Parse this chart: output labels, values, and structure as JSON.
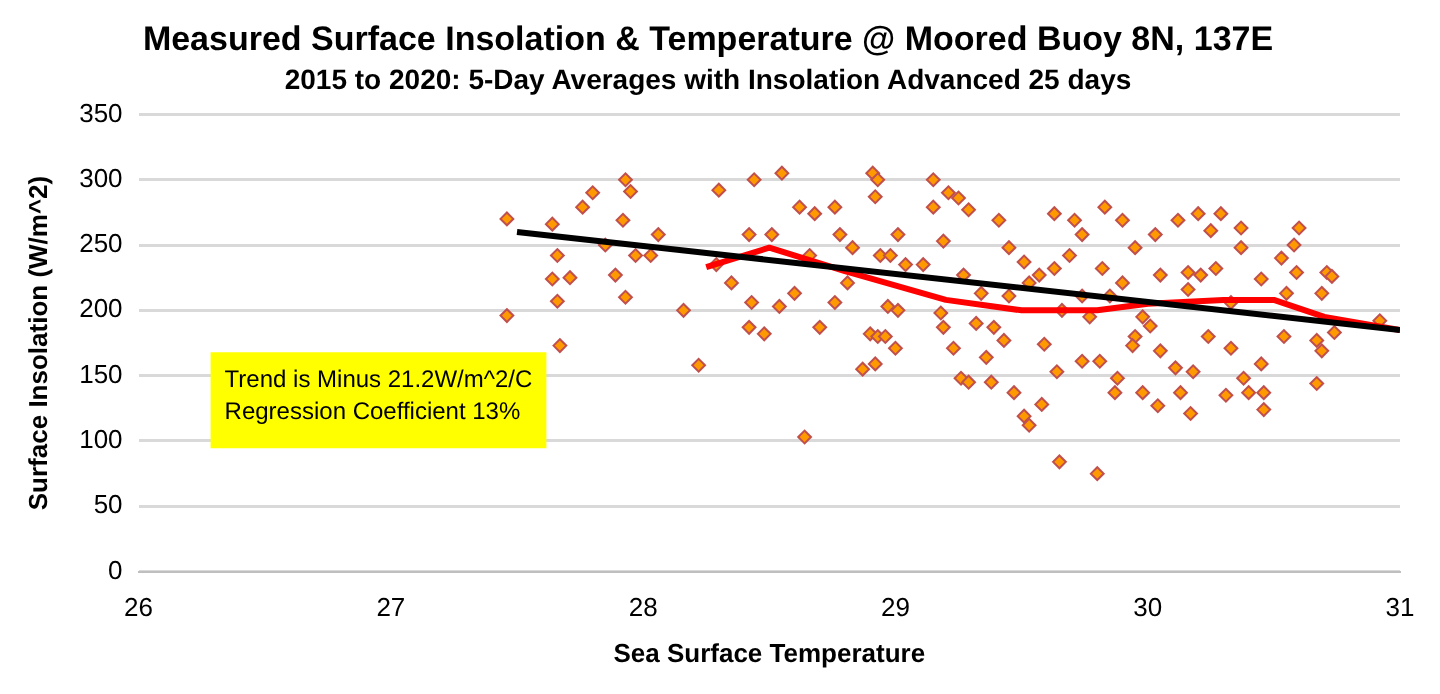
{
  "chart_data": {
    "type": "scatter",
    "title": "Measured Surface Insolation & Temperature @ Moored Buoy 8N, 137E",
    "subtitle": "2015 to 2020: 5-Day Averages with Insolation Advanced 25 days",
    "xlabel": "Sea Surface Temperature",
    "ylabel": "Surface Insolation (W/m^2)",
    "xlim": [
      26,
      31
    ],
    "xticks": [
      26,
      27,
      28,
      29,
      30,
      31
    ],
    "ylim": [
      0,
      350
    ],
    "yticks": [
      0,
      50,
      100,
      150,
      200,
      250,
      300,
      350
    ],
    "grid": "y",
    "legend": false,
    "marker": "diamond",
    "annotations": [
      "Trend is Minus 21.2W/m^2/C",
      "Regression Coefficient 13%"
    ],
    "series": [
      {
        "color": "#ff9900",
        "x": [
          27.46,
          27.46,
          27.67,
          27.66,
          27.71,
          27.93,
          27.89,
          28.16,
          28.22,
          28.06,
          28.3,
          28.44,
          28.55,
          28.64,
          28.42,
          28.48,
          28.54,
          28.43,
          28.35,
          28.42,
          28.51,
          28.62,
          28.68,
          28.76,
          28.91,
          28.93,
          28.92,
          28.7,
          28.76,
          28.81,
          28.87,
          28.92,
          28.9,
          28.93,
          28.96,
          29.0,
          29.01,
          28.97,
          28.94,
          28.98,
          29.01,
          29.04,
          28.83,
          28.78,
          28.66,
          28.6,
          28.29,
          27.97,
          28.03,
          27.85,
          27.64,
          27.76,
          27.8,
          27.93,
          27.95,
          27.92,
          27.66,
          27.64,
          29.15,
          29.21,
          29.25,
          29.29,
          29.15,
          29.19,
          29.11,
          29.27,
          29.34,
          29.19,
          29.23,
          29.26,
          29.29,
          29.36,
          29.38,
          29.47,
          29.51,
          29.53,
          29.58,
          29.65,
          29.8,
          29.63,
          29.71,
          29.83,
          29.9,
          29.74,
          29.41,
          29.45,
          29.51,
          29.57,
          29.63,
          29.69,
          29.66,
          29.77,
          29.85,
          29.95,
          30.03,
          30.12,
          30.2,
          30.29,
          30.37,
          30.37,
          30.25,
          30.16,
          30.05,
          29.98,
          29.95,
          30.01,
          30.05,
          29.88,
          29.87,
          29.98,
          30.04,
          30.13,
          30.17,
          30.18,
          30.11,
          30.24,
          30.33,
          30.38,
          30.4,
          30.46,
          30.45,
          30.46,
          30.31,
          30.54,
          30.6,
          30.58,
          30.53,
          30.59,
          30.71,
          30.73,
          30.69,
          30.67,
          30.69,
          30.67,
          30.74,
          30.92,
          30.55,
          30.45,
          30.33,
          30.27,
          30.21,
          30.16,
          29.9,
          29.82,
          29.74,
          29.53,
          29.45,
          29.39,
          29.43,
          29.59,
          29.64,
          29.74,
          29.81,
          29.94,
          29.18,
          29.32
        ],
        "values": [
          270,
          196,
          173,
          207,
          225,
          210,
          227,
          200,
          158,
          258,
          292,
          300,
          305,
          103,
          187,
          182,
          203,
          206,
          221,
          258,
          258,
          279,
          274,
          279,
          305,
          300,
          287,
          187,
          206,
          221,
          155,
          159,
          182,
          180,
          180,
          171,
          200,
          203,
          242,
          242,
          258,
          235,
          248,
          258,
          242,
          213,
          235,
          242,
          242,
          250,
          266,
          279,
          290,
          300,
          291,
          269,
          242,
          224,
          300,
          290,
          286,
          277,
          279,
          253,
          235,
          227,
          213,
          187,
          171,
          148,
          145,
          164,
          145,
          137,
          119,
          112,
          128,
          84,
          75,
          274,
          269,
          279,
          269,
          258,
          269,
          248,
          237,
          227,
          232,
          242,
          200,
          195,
          211,
          248,
          258,
          269,
          274,
          274,
          263,
          248,
          261,
          229,
          227,
          195,
          180,
          188,
          169,
          148,
          137,
          137,
          127,
          137,
          121,
          153,
          156,
          180,
          171,
          148,
          137,
          124,
          159,
          137,
          135,
          180,
          263,
          250,
          240,
          229,
          229,
          226,
          213,
          177,
          169,
          144,
          183,
          192,
          213,
          224,
          206,
          232,
          227,
          216,
          221,
          232,
          211,
          221,
          211,
          187,
          177,
          174,
          153,
          161,
          161,
          173,
          198,
          190
        ]
      },
      {
        "type": "line",
        "marker": "none",
        "color": "#000000",
        "x": [
          27.5,
          31
        ],
        "values": [
          260,
          185
        ]
      },
      {
        "type": "line",
        "marker": "none",
        "color": "#ff0000",
        "x": [
          28.25,
          28.5,
          28.8,
          29.2,
          29.5,
          29.8,
          30.0,
          30.3,
          30.5,
          30.7,
          31.0
        ],
        "values": [
          233,
          248,
          230,
          208,
          200,
          200,
          205,
          208,
          208,
          195,
          185
        ]
      }
    ]
  }
}
